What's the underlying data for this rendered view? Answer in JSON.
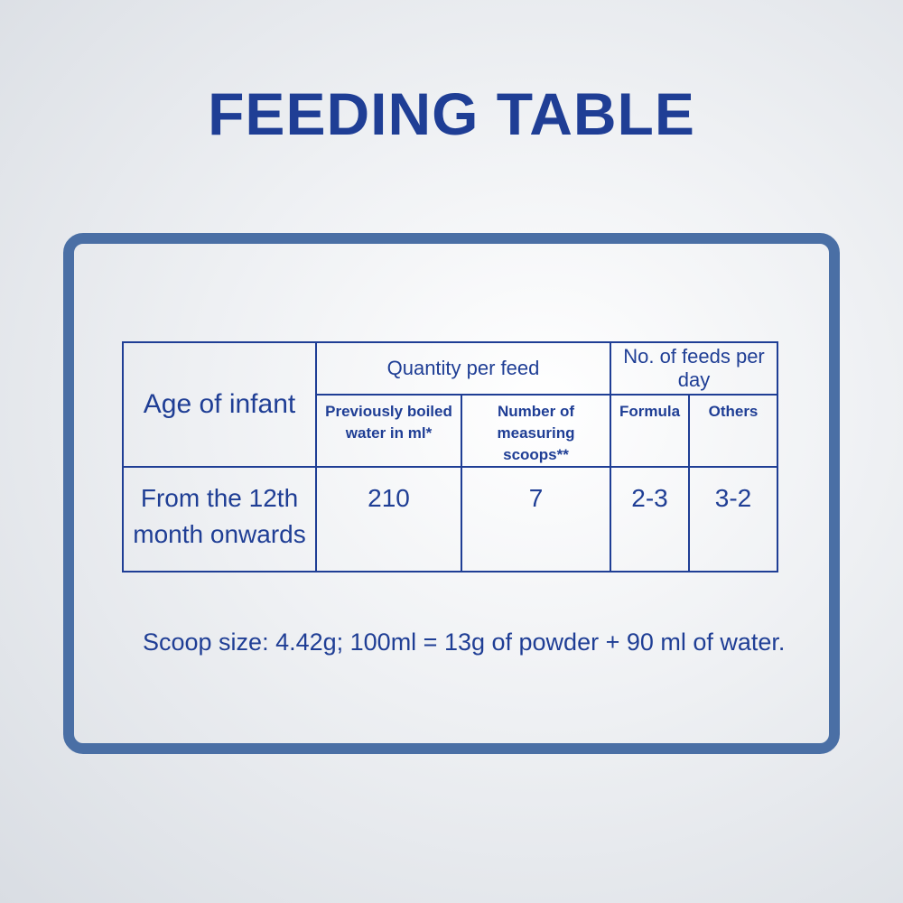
{
  "header": {
    "title": "FEEDING TABLE"
  },
  "table": {
    "group_headers": [
      "Age of infant",
      "Quantity per feed",
      "No. of feeds per day"
    ],
    "sub_headers": [
      "Previously boiled water in ml*",
      "Number of measuring scoops**",
      "Formula",
      "Others"
    ],
    "rows": [
      [
        "From the 12th month onwards",
        "210",
        "7",
        "2-3",
        "3-2"
      ]
    ]
  },
  "note": "Scoop size: 4.42g; 100ml = 13g of powder + 90 ml of water."
}
